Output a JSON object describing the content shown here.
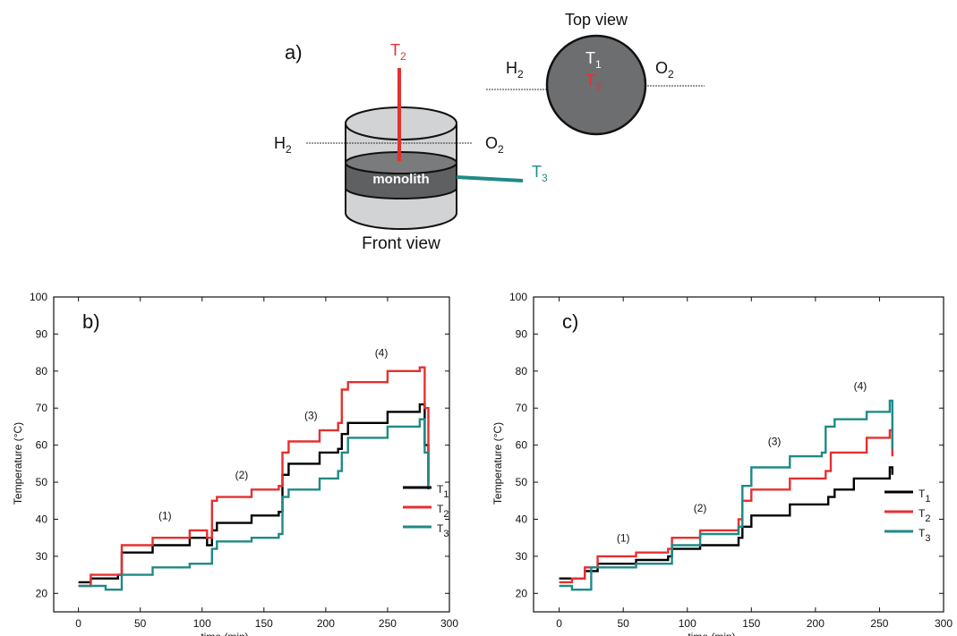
{
  "diagram": {
    "panel_label": "a)",
    "front_view_label": "Front  view",
    "top_view_label": "Top view",
    "monolith_label": "monolith",
    "front_h2": "H",
    "front_h2_sub": "2",
    "front_o2": "O",
    "front_o2_sub": "2",
    "front_t2": "T",
    "front_t2_sub": "2",
    "front_t3": "T",
    "front_t3_sub": "3",
    "top_h2": "H",
    "top_h2_sub": "2",
    "top_o2": "O",
    "top_o2_sub": "2",
    "top_t1": "T",
    "top_t1_sub": "1",
    "top_t2": "T",
    "top_t2_sub": "2",
    "colors": {
      "t1": "#000000",
      "t2": "#e53030",
      "t3": "#1f8a86",
      "cylinder_fill": "#d2d3d5",
      "monolith_fill": "#5f6062",
      "top_circle_fill": "#6d6e70"
    }
  },
  "chart_data": [
    {
      "type": "line",
      "panel_label": "b)",
      "xlabel": "time (min)",
      "ylabel": "Temperature (°C)",
      "xlim": [
        -20,
        300
      ],
      "ylim": [
        15,
        100
      ],
      "xticks": [
        0,
        50,
        100,
        150,
        200,
        250,
        300
      ],
      "yticks": [
        20,
        30,
        40,
        50,
        60,
        70,
        80,
        90,
        100
      ],
      "legend_position": "right",
      "annotations": [
        {
          "text": "(1)",
          "x": 70,
          "y": 40
        },
        {
          "text": "(2)",
          "x": 132,
          "y": 51
        },
        {
          "text": "(3)",
          "x": 188,
          "y": 67
        },
        {
          "text": "(4)",
          "x": 245,
          "y": 84
        }
      ],
      "series": [
        {
          "name": "T",
          "sub": "1",
          "color": "#000000",
          "x": [
            0,
            10,
            32,
            35,
            60,
            90,
            104,
            108,
            112,
            140,
            162,
            165,
            170,
            195,
            210,
            213,
            218,
            250,
            276,
            280,
            283
          ],
          "y": [
            23,
            24,
            25,
            31,
            33,
            35,
            33,
            37,
            39,
            41,
            42,
            52,
            55,
            58,
            59,
            63,
            66,
            69,
            71,
            60,
            50
          ]
        },
        {
          "name": "T",
          "sub": "2",
          "color": "#e53030",
          "x": [
            0,
            10,
            32,
            35,
            60,
            90,
            104,
            108,
            112,
            140,
            162,
            165,
            170,
            195,
            210,
            213,
            218,
            250,
            276,
            280,
            283
          ],
          "y": [
            22,
            25,
            25,
            33,
            35,
            37,
            35,
            45,
            46,
            48,
            49,
            58,
            61,
            64,
            66,
            75,
            77,
            80,
            81,
            70,
            49
          ]
        },
        {
          "name": "T",
          "sub": "3",
          "color": "#1f8a86",
          "x": [
            0,
            10,
            22,
            32,
            35,
            60,
            90,
            104,
            108,
            112,
            140,
            162,
            165,
            170,
            195,
            210,
            213,
            218,
            250,
            276,
            280,
            283
          ],
          "y": [
            22,
            22,
            21,
            21,
            25,
            27,
            28,
            28,
            32,
            34,
            35,
            36,
            46,
            48,
            51,
            53,
            58,
            62,
            65,
            67,
            58,
            48
          ]
        }
      ]
    },
    {
      "type": "line",
      "panel_label": "c)",
      "xlabel": "time (min)",
      "ylabel": "Temperature (°C)",
      "xlim": [
        -20,
        300
      ],
      "ylim": [
        15,
        100
      ],
      "xticks": [
        0,
        50,
        100,
        150,
        200,
        250,
        300
      ],
      "yticks": [
        20,
        30,
        40,
        50,
        60,
        70,
        80,
        90,
        100
      ],
      "legend_position": "right",
      "annotations": [
        {
          "text": "(1)",
          "x": 50,
          "y": 34
        },
        {
          "text": "(2)",
          "x": 110,
          "y": 42
        },
        {
          "text": "(3)",
          "x": 168,
          "y": 60
        },
        {
          "text": "(4)",
          "x": 235,
          "y": 75
        }
      ],
      "series": [
        {
          "name": "T",
          "sub": "1",
          "color": "#000000",
          "x": [
            0,
            10,
            20,
            30,
            60,
            85,
            88,
            110,
            140,
            143,
            150,
            180,
            210,
            215,
            230,
            258,
            260
          ],
          "y": [
            24,
            24,
            26,
            28,
            29,
            30,
            32,
            33,
            35,
            38,
            41,
            44,
            46,
            48,
            51,
            54,
            52
          ]
        },
        {
          "name": "T",
          "sub": "2",
          "color": "#e53030",
          "x": [
            0,
            10,
            20,
            30,
            60,
            85,
            88,
            110,
            140,
            143,
            150,
            180,
            208,
            212,
            240,
            258,
            260
          ],
          "y": [
            23,
            24,
            27,
            30,
            31,
            32,
            35,
            37,
            40,
            45,
            48,
            51,
            53,
            58,
            62,
            64,
            57
          ]
        },
        {
          "name": "T",
          "sub": "3",
          "color": "#1f8a86",
          "x": [
            0,
            10,
            15,
            20,
            25,
            60,
            85,
            88,
            110,
            140,
            143,
            150,
            180,
            205,
            208,
            215,
            240,
            258,
            260
          ],
          "y": [
            22,
            21,
            21,
            21,
            27,
            28,
            28,
            33,
            36,
            38,
            49,
            54,
            57,
            58,
            65,
            67,
            69,
            72,
            59
          ]
        }
      ]
    }
  ]
}
